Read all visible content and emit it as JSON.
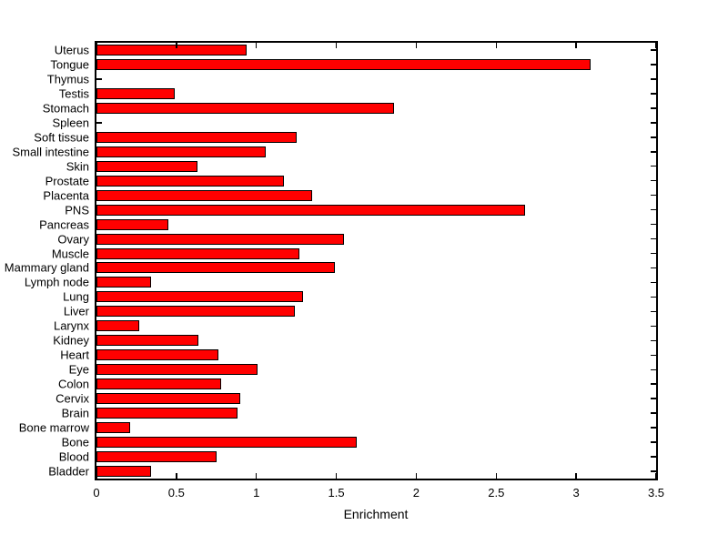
{
  "figure": {
    "background_color": "#ffffff",
    "axes_color": "#000000"
  },
  "chart_data": {
    "type": "bar",
    "orientation": "horizontal",
    "title": "",
    "xlabel": "Enrichment",
    "ylabel": "",
    "xlim": [
      0,
      3.5
    ],
    "xticks": [
      0,
      0.5,
      1,
      1.5,
      2,
      2.5,
      3,
      3.5
    ],
    "xtick_labels": [
      "0",
      "0.5",
      "1",
      "1.5",
      "2",
      "2.5",
      "3",
      "3.5"
    ],
    "grid": "off",
    "legend": "none",
    "bar_color": "#FF0000",
    "bar_edge_color": "#000000",
    "categories": [
      "Uterus",
      "Tongue",
      "Thymus",
      "Testis",
      "Stomach",
      "Spleen",
      "Soft tissue",
      "Small intestine",
      "Skin",
      "Prostate",
      "Placenta",
      "PNS",
      "Pancreas",
      "Ovary",
      "Muscle",
      "Mammary gland",
      "Lymph node",
      "Lung",
      "Liver",
      "Larynx",
      "Kidney",
      "Heart",
      "Eye",
      "Colon",
      "Cervix",
      "Brain",
      "Bone marrow",
      "Bone",
      "Blood",
      "Bladder"
    ],
    "values": [
      0.94,
      3.09,
      0,
      0.49,
      1.86,
      0,
      1.25,
      1.06,
      0.63,
      1.17,
      1.35,
      2.68,
      0.45,
      1.55,
      1.27,
      1.49,
      0.34,
      1.29,
      1.24,
      0.27,
      0.64,
      0.76,
      1.01,
      0.78,
      0.9,
      0.88,
      0.21,
      1.63,
      0.75,
      0.34
    ]
  }
}
